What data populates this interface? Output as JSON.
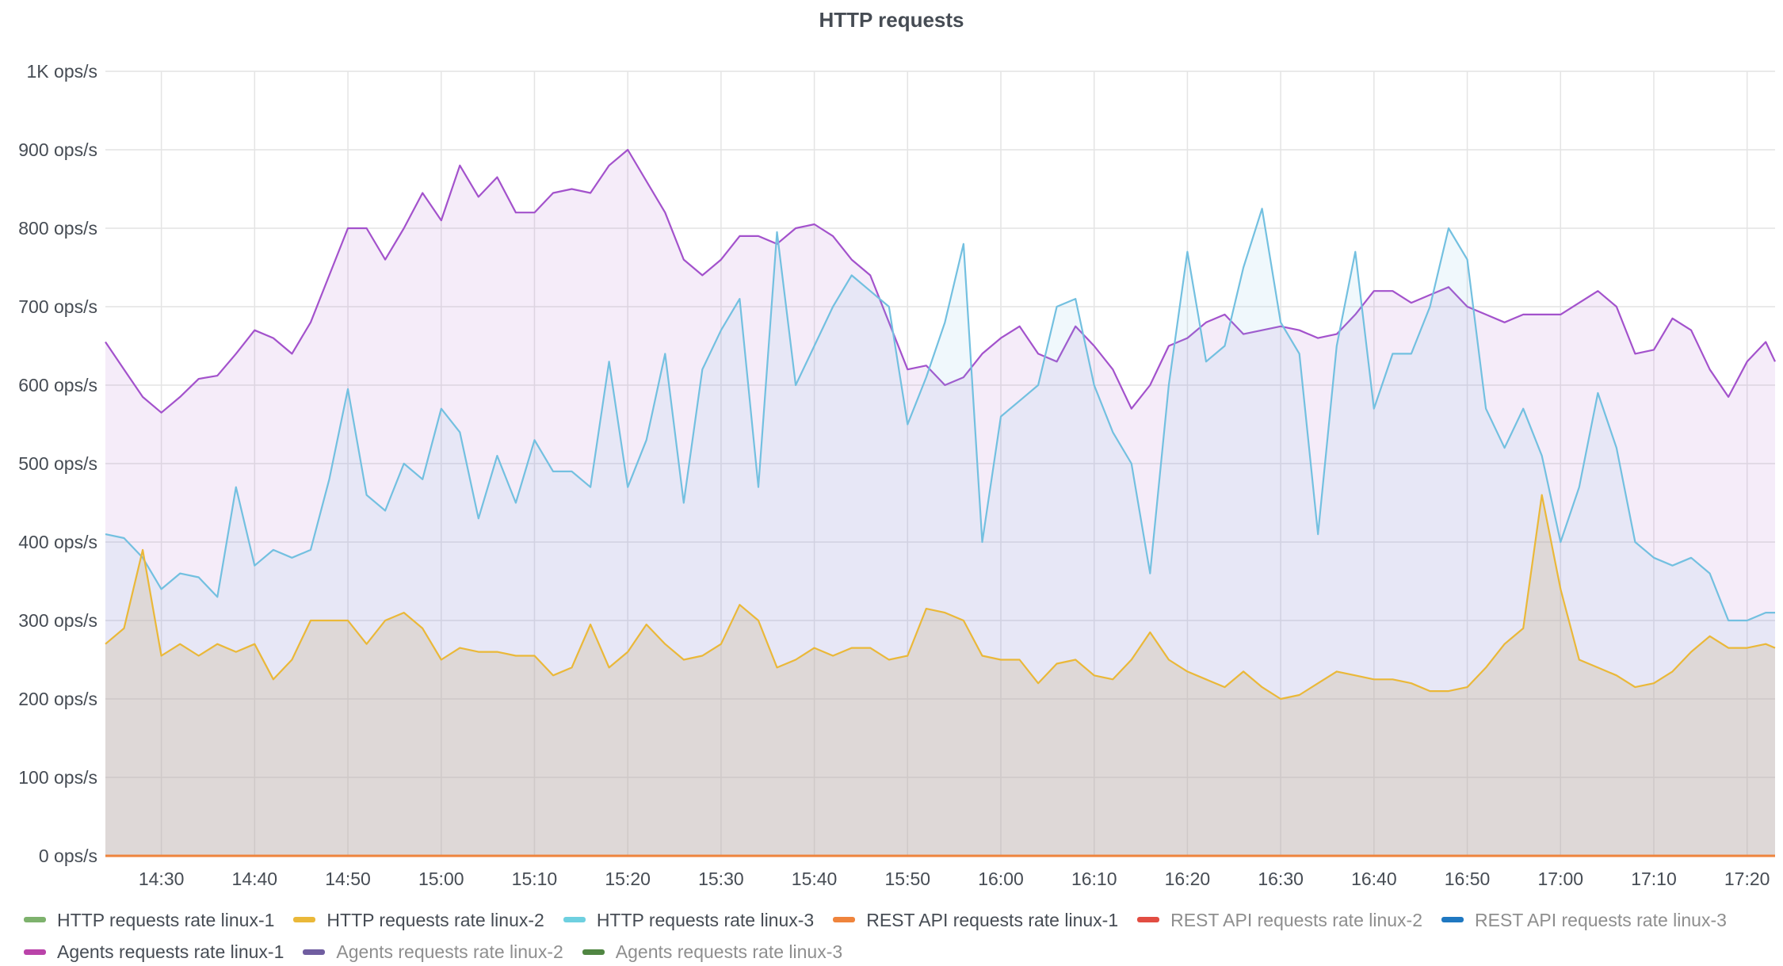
{
  "panel": {
    "title": "HTTP requests"
  },
  "chart_data": {
    "type": "area",
    "title": "HTTP requests",
    "x_axis": {
      "start": "14:24",
      "end": "17:23",
      "ticks": [
        "14:30",
        "14:40",
        "14:50",
        "15:00",
        "15:10",
        "15:20",
        "15:30",
        "15:40",
        "15:50",
        "16:00",
        "16:10",
        "16:20",
        "16:30",
        "16:40",
        "16:50",
        "17:00",
        "17:10",
        "17:20"
      ]
    },
    "y_axis": {
      "min": 0,
      "max": 1000,
      "unit": "ops/s",
      "ticks": [
        "0 ops/s",
        "100 ops/s",
        "200 ops/s",
        "300 ops/s",
        "400 ops/s",
        "500 ops/s",
        "600 ops/s",
        "700 ops/s",
        "800 ops/s",
        "900 ops/s",
        "1K ops/s"
      ],
      "tick_values": [
        0,
        100,
        200,
        300,
        400,
        500,
        600,
        700,
        800,
        900,
        1000
      ]
    },
    "grid": true,
    "legend_position": "bottom",
    "series": [
      {
        "name": "Agents requests rate linux-1",
        "color": "#a352cc",
        "visible": true,
        "points": [
          [
            "14:24",
            655
          ],
          [
            "14:26",
            620
          ],
          [
            "14:28",
            585
          ],
          [
            "14:30",
            565
          ],
          [
            "14:32",
            585
          ],
          [
            "14:34",
            608
          ],
          [
            "14:36",
            612
          ],
          [
            "14:38",
            640
          ],
          [
            "14:40",
            670
          ],
          [
            "14:42",
            660
          ],
          [
            "14:44",
            640
          ],
          [
            "14:46",
            680
          ],
          [
            "14:48",
            740
          ],
          [
            "14:50",
            800
          ],
          [
            "14:52",
            800
          ],
          [
            "14:54",
            760
          ],
          [
            "14:56",
            800
          ],
          [
            "14:58",
            845
          ],
          [
            "15:00",
            810
          ],
          [
            "15:02",
            880
          ],
          [
            "15:04",
            840
          ],
          [
            "15:06",
            865
          ],
          [
            "15:08",
            820
          ],
          [
            "15:10",
            820
          ],
          [
            "15:12",
            845
          ],
          [
            "15:14",
            850
          ],
          [
            "15:16",
            845
          ],
          [
            "15:18",
            880
          ],
          [
            "15:20",
            900
          ],
          [
            "15:22",
            860
          ],
          [
            "15:24",
            820
          ],
          [
            "15:26",
            760
          ],
          [
            "15:28",
            740
          ],
          [
            "15:30",
            760
          ],
          [
            "15:32",
            790
          ],
          [
            "15:34",
            790
          ],
          [
            "15:36",
            780
          ],
          [
            "15:38",
            800
          ],
          [
            "15:40",
            805
          ],
          [
            "15:42",
            790
          ],
          [
            "15:44",
            760
          ],
          [
            "15:46",
            740
          ],
          [
            "15:48",
            680
          ],
          [
            "15:50",
            620
          ],
          [
            "15:52",
            625
          ],
          [
            "15:54",
            600
          ],
          [
            "15:56",
            610
          ],
          [
            "15:58",
            640
          ],
          [
            "16:00",
            660
          ],
          [
            "16:02",
            675
          ],
          [
            "16:04",
            640
          ],
          [
            "16:06",
            630
          ],
          [
            "16:08",
            675
          ],
          [
            "16:10",
            650
          ],
          [
            "16:12",
            620
          ],
          [
            "16:14",
            570
          ],
          [
            "16:16",
            600
          ],
          [
            "16:18",
            650
          ],
          [
            "16:20",
            660
          ],
          [
            "16:22",
            680
          ],
          [
            "16:24",
            690
          ],
          [
            "16:26",
            665
          ],
          [
            "16:28",
            670
          ],
          [
            "16:30",
            675
          ],
          [
            "16:32",
            670
          ],
          [
            "16:34",
            660
          ],
          [
            "16:36",
            665
          ],
          [
            "16:38",
            690
          ],
          [
            "16:40",
            720
          ],
          [
            "16:42",
            720
          ],
          [
            "16:44",
            705
          ],
          [
            "16:46",
            715
          ],
          [
            "16:48",
            725
          ],
          [
            "16:50",
            700
          ],
          [
            "16:52",
            690
          ],
          [
            "16:54",
            680
          ],
          [
            "16:56",
            690
          ],
          [
            "16:58",
            690
          ],
          [
            "17:00",
            690
          ],
          [
            "17:02",
            705
          ],
          [
            "17:04",
            720
          ],
          [
            "17:06",
            700
          ],
          [
            "17:08",
            640
          ],
          [
            "17:10",
            645
          ],
          [
            "17:12",
            685
          ],
          [
            "17:14",
            670
          ],
          [
            "17:16",
            620
          ],
          [
            "17:18",
            585
          ],
          [
            "17:20",
            630
          ],
          [
            "17:22",
            655
          ],
          [
            "17:23",
            630
          ]
        ]
      },
      {
        "name": "HTTP requests rate linux-3",
        "color": "#73c0e0",
        "visible": true,
        "points": [
          [
            "14:24",
            410
          ],
          [
            "14:26",
            405
          ],
          [
            "14:28",
            380
          ],
          [
            "14:30",
            340
          ],
          [
            "14:32",
            360
          ],
          [
            "14:34",
            355
          ],
          [
            "14:36",
            330
          ],
          [
            "14:38",
            470
          ],
          [
            "14:40",
            370
          ],
          [
            "14:42",
            390
          ],
          [
            "14:44",
            380
          ],
          [
            "14:46",
            390
          ],
          [
            "14:48",
            480
          ],
          [
            "14:50",
            595
          ],
          [
            "14:52",
            460
          ],
          [
            "14:54",
            440
          ],
          [
            "14:56",
            500
          ],
          [
            "14:58",
            480
          ],
          [
            "15:00",
            570
          ],
          [
            "15:02",
            540
          ],
          [
            "15:04",
            430
          ],
          [
            "15:06",
            510
          ],
          [
            "15:08",
            450
          ],
          [
            "15:10",
            530
          ],
          [
            "15:12",
            490
          ],
          [
            "15:14",
            490
          ],
          [
            "15:16",
            470
          ],
          [
            "15:18",
            630
          ],
          [
            "15:20",
            470
          ],
          [
            "15:22",
            530
          ],
          [
            "15:24",
            640
          ],
          [
            "15:26",
            450
          ],
          [
            "15:28",
            620
          ],
          [
            "15:30",
            670
          ],
          [
            "15:32",
            710
          ],
          [
            "15:34",
            470
          ],
          [
            "15:36",
            795
          ],
          [
            "15:38",
            600
          ],
          [
            "15:40",
            650
          ],
          [
            "15:42",
            700
          ],
          [
            "15:44",
            740
          ],
          [
            "15:46",
            720
          ],
          [
            "15:48",
            700
          ],
          [
            "15:50",
            550
          ],
          [
            "15:52",
            610
          ],
          [
            "15:54",
            680
          ],
          [
            "15:56",
            780
          ],
          [
            "15:58",
            400
          ],
          [
            "16:00",
            560
          ],
          [
            "16:02",
            580
          ],
          [
            "16:04",
            600
          ],
          [
            "16:06",
            700
          ],
          [
            "16:08",
            710
          ],
          [
            "16:10",
            600
          ],
          [
            "16:12",
            540
          ],
          [
            "16:14",
            500
          ],
          [
            "16:16",
            360
          ],
          [
            "16:18",
            600
          ],
          [
            "16:20",
            770
          ],
          [
            "16:22",
            630
          ],
          [
            "16:24",
            650
          ],
          [
            "16:26",
            750
          ],
          [
            "16:28",
            825
          ],
          [
            "16:30",
            680
          ],
          [
            "16:32",
            640
          ],
          [
            "16:34",
            410
          ],
          [
            "16:36",
            650
          ],
          [
            "16:38",
            770
          ],
          [
            "16:40",
            570
          ],
          [
            "16:42",
            640
          ],
          [
            "16:44",
            640
          ],
          [
            "16:46",
            700
          ],
          [
            "16:48",
            800
          ],
          [
            "16:50",
            760
          ],
          [
            "16:52",
            570
          ],
          [
            "16:54",
            520
          ],
          [
            "16:56",
            570
          ],
          [
            "16:58",
            510
          ],
          [
            "17:00",
            400
          ],
          [
            "17:02",
            470
          ],
          [
            "17:04",
            590
          ],
          [
            "17:06",
            520
          ],
          [
            "17:08",
            400
          ],
          [
            "17:10",
            380
          ],
          [
            "17:12",
            370
          ],
          [
            "17:14",
            380
          ],
          [
            "17:16",
            360
          ],
          [
            "17:18",
            300
          ],
          [
            "17:20",
            300
          ],
          [
            "17:22",
            310
          ],
          [
            "17:23",
            310
          ]
        ]
      },
      {
        "name": "HTTP requests rate linux-2",
        "color": "#eab839",
        "visible": true,
        "points": [
          [
            "14:24",
            270
          ],
          [
            "14:26",
            290
          ],
          [
            "14:28",
            390
          ],
          [
            "14:30",
            255
          ],
          [
            "14:32",
            270
          ],
          [
            "14:34",
            255
          ],
          [
            "14:36",
            270
          ],
          [
            "14:38",
            260
          ],
          [
            "14:40",
            270
          ],
          [
            "14:42",
            225
          ],
          [
            "14:44",
            250
          ],
          [
            "14:46",
            300
          ],
          [
            "14:48",
            300
          ],
          [
            "14:50",
            300
          ],
          [
            "14:52",
            270
          ],
          [
            "14:54",
            300
          ],
          [
            "14:56",
            310
          ],
          [
            "14:58",
            290
          ],
          [
            "15:00",
            250
          ],
          [
            "15:02",
            265
          ],
          [
            "15:04",
            260
          ],
          [
            "15:06",
            260
          ],
          [
            "15:08",
            255
          ],
          [
            "15:10",
            255
          ],
          [
            "15:12",
            230
          ],
          [
            "15:14",
            240
          ],
          [
            "15:16",
            295
          ],
          [
            "15:18",
            240
          ],
          [
            "15:20",
            260
          ],
          [
            "15:22",
            295
          ],
          [
            "15:24",
            270
          ],
          [
            "15:26",
            250
          ],
          [
            "15:28",
            255
          ],
          [
            "15:30",
            270
          ],
          [
            "15:32",
            320
          ],
          [
            "15:34",
            300
          ],
          [
            "15:36",
            240
          ],
          [
            "15:38",
            250
          ],
          [
            "15:40",
            265
          ],
          [
            "15:42",
            255
          ],
          [
            "15:44",
            265
          ],
          [
            "15:46",
            265
          ],
          [
            "15:48",
            250
          ],
          [
            "15:50",
            255
          ],
          [
            "15:52",
            315
          ],
          [
            "15:54",
            310
          ],
          [
            "15:56",
            300
          ],
          [
            "15:58",
            255
          ],
          [
            "16:00",
            250
          ],
          [
            "16:02",
            250
          ],
          [
            "16:04",
            220
          ],
          [
            "16:06",
            245
          ],
          [
            "16:08",
            250
          ],
          [
            "16:10",
            230
          ],
          [
            "16:12",
            225
          ],
          [
            "16:14",
            250
          ],
          [
            "16:16",
            285
          ],
          [
            "16:18",
            250
          ],
          [
            "16:20",
            235
          ],
          [
            "16:22",
            225
          ],
          [
            "16:24",
            215
          ],
          [
            "16:26",
            235
          ],
          [
            "16:28",
            215
          ],
          [
            "16:30",
            200
          ],
          [
            "16:32",
            205
          ],
          [
            "16:34",
            220
          ],
          [
            "16:36",
            235
          ],
          [
            "16:38",
            230
          ],
          [
            "16:40",
            225
          ],
          [
            "16:42",
            225
          ],
          [
            "16:44",
            220
          ],
          [
            "16:46",
            210
          ],
          [
            "16:48",
            210
          ],
          [
            "16:50",
            215
          ],
          [
            "16:52",
            240
          ],
          [
            "16:54",
            270
          ],
          [
            "16:56",
            290
          ],
          [
            "16:58",
            460
          ],
          [
            "17:00",
            340
          ],
          [
            "17:02",
            250
          ],
          [
            "17:04",
            240
          ],
          [
            "17:06",
            230
          ],
          [
            "17:08",
            215
          ],
          [
            "17:10",
            220
          ],
          [
            "17:12",
            235
          ],
          [
            "17:14",
            260
          ],
          [
            "17:16",
            280
          ],
          [
            "17:18",
            265
          ],
          [
            "17:20",
            265
          ],
          [
            "17:22",
            270
          ],
          [
            "17:23",
            265
          ]
        ]
      },
      {
        "name": "REST API requests rate linux-1",
        "color": "#ef843c",
        "visible": true,
        "points": [
          [
            "14:24",
            0
          ],
          [
            "17:23",
            0
          ]
        ]
      }
    ],
    "legend": [
      {
        "label": "HTTP requests rate linux-1",
        "color": "#7eb26d",
        "visible": true
      },
      {
        "label": "HTTP requests rate linux-2",
        "color": "#eab839",
        "visible": true
      },
      {
        "label": "HTTP requests rate linux-3",
        "color": "#6ed0e0",
        "visible": true
      },
      {
        "label": "REST API requests rate linux-1",
        "color": "#ef843c",
        "visible": true
      },
      {
        "label": "REST API requests rate linux-2",
        "color": "#e24d42",
        "visible": false
      },
      {
        "label": "REST API requests rate linux-3",
        "color": "#1f78c1",
        "visible": false
      },
      {
        "label": "Agents requests rate linux-1",
        "color": "#ba43a9",
        "visible": true
      },
      {
        "label": "Agents requests rate linux-2",
        "color": "#705da0",
        "visible": false
      },
      {
        "label": "Agents requests rate linux-3",
        "color": "#508642",
        "visible": false
      }
    ]
  }
}
